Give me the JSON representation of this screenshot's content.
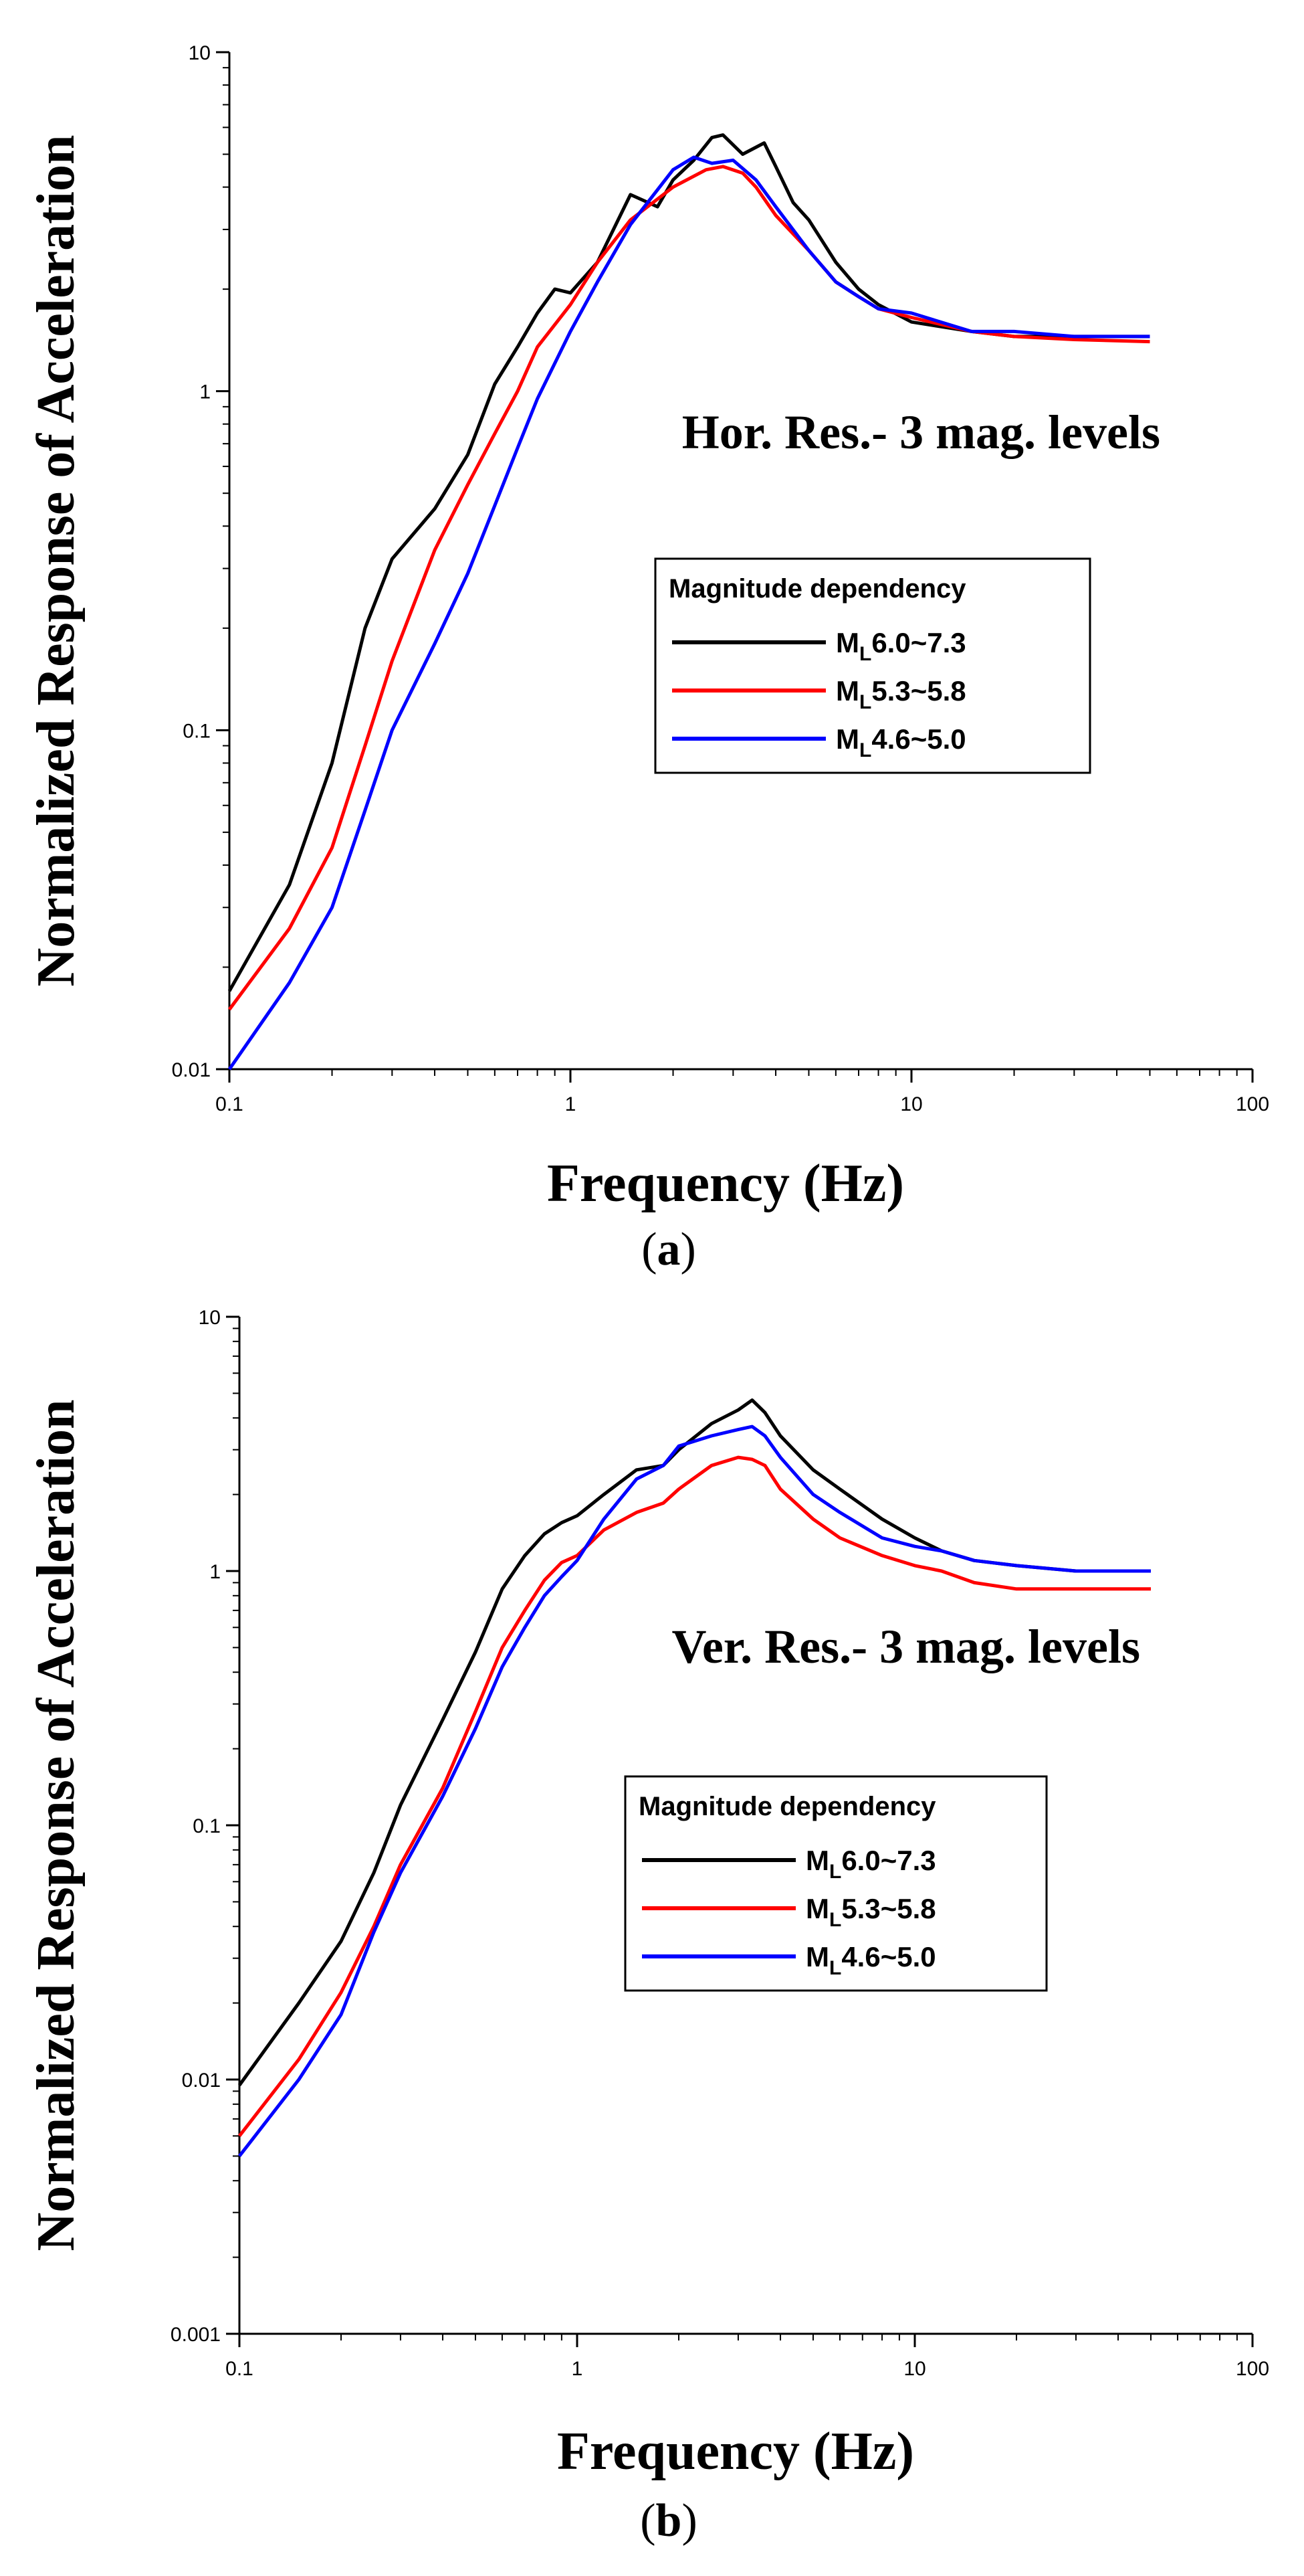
{
  "chart_data": [
    {
      "type": "line",
      "panel": "a",
      "caption_open": "(",
      "caption_letter": "a",
      "caption_close": ")",
      "annotation": "Hor. Res.- 3 mag. levels",
      "xlabel": "Frequency (Hz)",
      "ylabel": "Normalized Response of Acceleration",
      "xscale": "log",
      "yscale": "log",
      "xlim": [
        0.1,
        100
      ],
      "ylim": [
        0.01,
        10
      ],
      "xticks": [
        0.1,
        1,
        10,
        100
      ],
      "xtick_labels": [
        "0.1",
        "1",
        "10",
        "100"
      ],
      "yticks": [
        0.01,
        0.1,
        1,
        10
      ],
      "ytick_labels": [
        "0.01",
        "0.1",
        "1",
        "10"
      ],
      "legend": {
        "title": "Magnitude dependency",
        "placement": "center-right"
      },
      "series": [
        {
          "name": "ML6.0~7.3",
          "label_main": "M",
          "label_sub": "L",
          "label_rest": "6.0~7.3",
          "color": "#000000",
          "x": [
            0.1,
            0.15,
            0.2,
            0.25,
            0.3,
            0.4,
            0.5,
            0.6,
            0.7,
            0.8,
            0.9,
            1.0,
            1.2,
            1.5,
            1.8,
            2.0,
            2.3,
            2.6,
            2.8,
            3.2,
            3.7,
            4.0,
            4.5,
            5.0,
            6.0,
            7.0,
            8.0,
            10,
            15,
            20,
            30,
            50
          ],
          "y": [
            0.017,
            0.035,
            0.08,
            0.2,
            0.32,
            0.45,
            0.65,
            1.05,
            1.35,
            1.7,
            2.0,
            1.95,
            2.4,
            3.8,
            3.5,
            4.2,
            4.8,
            5.6,
            5.7,
            5.0,
            5.4,
            4.6,
            3.6,
            3.2,
            2.4,
            2.0,
            1.8,
            1.6,
            1.5,
            1.45,
            1.45,
            1.45
          ]
        },
        {
          "name": "ML5.3~5.8",
          "label_main": "M",
          "label_sub": "L",
          "label_rest": "5.3~5.8",
          "color": "#ff0000",
          "x": [
            0.1,
            0.15,
            0.2,
            0.25,
            0.3,
            0.4,
            0.5,
            0.6,
            0.7,
            0.8,
            1.0,
            1.2,
            1.5,
            2.0,
            2.5,
            2.8,
            3.2,
            3.5,
            4.0,
            5.0,
            6.0,
            7.0,
            8.0,
            10,
            15,
            20,
            30,
            50
          ],
          "y": [
            0.015,
            0.026,
            0.045,
            0.09,
            0.16,
            0.34,
            0.53,
            0.75,
            1.0,
            1.35,
            1.8,
            2.4,
            3.2,
            4.0,
            4.5,
            4.6,
            4.4,
            4.0,
            3.3,
            2.6,
            2.1,
            1.9,
            1.75,
            1.65,
            1.5,
            1.45,
            1.42,
            1.4
          ]
        },
        {
          "name": "ML4.6~5.0",
          "label_main": "M",
          "label_sub": "L",
          "label_rest": "4.6~5.0",
          "color": "#0000ff",
          "x": [
            0.1,
            0.15,
            0.2,
            0.25,
            0.3,
            0.4,
            0.5,
            0.6,
            0.7,
            0.8,
            1.0,
            1.2,
            1.5,
            2.0,
            2.3,
            2.6,
            3.0,
            3.5,
            4.0,
            5.0,
            6.0,
            7.0,
            8.0,
            10,
            15,
            20,
            30,
            50
          ],
          "y": [
            0.01,
            0.018,
            0.03,
            0.058,
            0.1,
            0.18,
            0.29,
            0.46,
            0.68,
            0.95,
            1.5,
            2.1,
            3.1,
            4.5,
            4.9,
            4.7,
            4.8,
            4.2,
            3.5,
            2.6,
            2.1,
            1.9,
            1.75,
            1.7,
            1.5,
            1.5,
            1.45,
            1.45
          ]
        }
      ]
    },
    {
      "type": "line",
      "panel": "b",
      "caption_open": "(",
      "caption_letter": "b",
      "caption_close": ")",
      "annotation": "Ver. Res.- 3 mag. levels",
      "xlabel": "Frequency (Hz)",
      "ylabel": "Normalized Response of Acceleration",
      "xscale": "log",
      "yscale": "log",
      "xlim": [
        0.1,
        100
      ],
      "ylim": [
        0.001,
        10
      ],
      "xticks": [
        0.1,
        1,
        10,
        100
      ],
      "xtick_labels": [
        "0.1",
        "1",
        "10",
        "100"
      ],
      "yticks": [
        0.001,
        0.01,
        0.1,
        1,
        10
      ],
      "ytick_labels": [
        "0.001",
        "0.01",
        "0.1",
        "1",
        "10"
      ],
      "legend": {
        "title": "Magnitude dependency",
        "placement": "center-right"
      },
      "series": [
        {
          "name": "ML6.0~7.3",
          "label_main": "M",
          "label_sub": "L",
          "label_rest": "6.0~7.3",
          "color": "#000000",
          "x": [
            0.1,
            0.15,
            0.2,
            0.25,
            0.3,
            0.4,
            0.5,
            0.6,
            0.7,
            0.8,
            0.9,
            1.0,
            1.2,
            1.5,
            1.8,
            2.0,
            2.5,
            3.0,
            3.3,
            3.6,
            4.0,
            5.0,
            6.0,
            8.0,
            10,
            12,
            15,
            20,
            30,
            50
          ],
          "y": [
            0.0095,
            0.02,
            0.035,
            0.065,
            0.12,
            0.26,
            0.48,
            0.85,
            1.15,
            1.4,
            1.55,
            1.65,
            2.0,
            2.5,
            2.6,
            3.0,
            3.8,
            4.3,
            4.7,
            4.2,
            3.4,
            2.5,
            2.1,
            1.6,
            1.35,
            1.2,
            1.1,
            1.05,
            1.0,
            1.0
          ]
        },
        {
          "name": "ML5.3~5.8",
          "label_main": "M",
          "label_sub": "L",
          "label_rest": "5.3~5.8",
          "color": "#ff0000",
          "x": [
            0.1,
            0.15,
            0.2,
            0.25,
            0.3,
            0.4,
            0.5,
            0.6,
            0.7,
            0.8,
            0.9,
            1.0,
            1.2,
            1.5,
            1.8,
            2.0,
            2.5,
            3.0,
            3.3,
            3.6,
            4.0,
            5.0,
            6.0,
            8.0,
            10,
            12,
            15,
            20,
            30,
            50
          ],
          "y": [
            0.006,
            0.012,
            0.022,
            0.04,
            0.07,
            0.14,
            0.28,
            0.5,
            0.7,
            0.92,
            1.08,
            1.15,
            1.45,
            1.7,
            1.85,
            2.1,
            2.6,
            2.8,
            2.75,
            2.6,
            2.1,
            1.6,
            1.35,
            1.15,
            1.05,
            1.0,
            0.9,
            0.85,
            0.85,
            0.85
          ]
        },
        {
          "name": "ML4.6~5.0",
          "label_main": "M",
          "label_sub": "L",
          "label_rest": "4.6~5.0",
          "color": "#0000ff",
          "x": [
            0.1,
            0.15,
            0.2,
            0.25,
            0.3,
            0.4,
            0.5,
            0.6,
            0.7,
            0.8,
            0.9,
            1.0,
            1.2,
            1.5,
            1.8,
            2.0,
            2.5,
            3.0,
            3.3,
            3.6,
            4.0,
            5.0,
            6.0,
            8.0,
            10,
            12,
            15,
            20,
            30,
            50
          ],
          "y": [
            0.005,
            0.01,
            0.018,
            0.038,
            0.065,
            0.13,
            0.24,
            0.42,
            0.6,
            0.8,
            0.95,
            1.1,
            1.6,
            2.3,
            2.6,
            3.1,
            3.4,
            3.6,
            3.7,
            3.4,
            2.8,
            2.0,
            1.7,
            1.35,
            1.25,
            1.2,
            1.1,
            1.05,
            1.0,
            1.0
          ]
        }
      ]
    }
  ]
}
